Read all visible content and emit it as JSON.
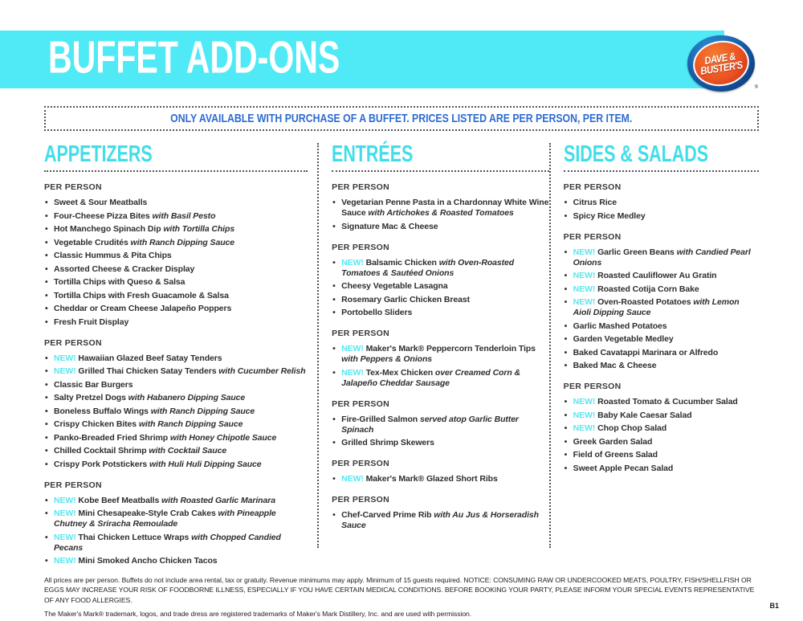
{
  "colors": {
    "banner_cyan": "#4feaf5",
    "heading_cyan": "#41dee9",
    "new_cyan": "#5be5ee",
    "notice_blue": "#2d6bd2",
    "body_text": "#2e2e2e"
  },
  "banner": {
    "title": "BUFFET ADD-ONS"
  },
  "logo": {
    "line1": "DAVE &",
    "line2": "BUSTER'S",
    "registered_mark": "®"
  },
  "notice": {
    "text": "ONLY AVAILABLE WITH PURCHASE OF A BUFFET. PRICES LISTED ARE PER PERSON, PER ITEM."
  },
  "menu": {
    "new_label": "NEW!",
    "columns": [
      {
        "id": "appetizers",
        "title": "APPETIZERS",
        "groups": [
          {
            "label": "PER PERSON",
            "items": [
              {
                "new": false,
                "name": "Sweet & Sour Meatballs",
                "detail": ""
              },
              {
                "new": false,
                "name": "Four-Cheese Pizza Bites",
                "detail": "with Basil Pesto"
              },
              {
                "new": false,
                "name": "Hot Manchego Spinach Dip",
                "detail": "with Tortilla Chips"
              },
              {
                "new": false,
                "name": "Vegetable Crudités",
                "detail": "with Ranch Dipping Sauce"
              },
              {
                "new": false,
                "name": "Classic Hummus & Pita Chips",
                "detail": ""
              },
              {
                "new": false,
                "name": "Assorted Cheese & Cracker Display",
                "detail": ""
              },
              {
                "new": false,
                "name": "Tortilla Chips with Queso & Salsa",
                "detail": ""
              },
              {
                "new": false,
                "name": "Tortilla Chips with Fresh Guacamole & Salsa",
                "detail": ""
              },
              {
                "new": false,
                "name": "Cheddar or Cream Cheese Jalapeño Poppers",
                "detail": ""
              },
              {
                "new": false,
                "name": "Fresh Fruit Display",
                "detail": ""
              }
            ]
          },
          {
            "label": "PER PERSON",
            "items": [
              {
                "new": true,
                "name": "Hawaiian Glazed Beef Satay Tenders",
                "detail": ""
              },
              {
                "new": true,
                "name": "Grilled Thai Chicken Satay Tenders",
                "detail": "with Cucumber Relish"
              },
              {
                "new": false,
                "name": "Classic Bar Burgers",
                "detail": ""
              },
              {
                "new": false,
                "name": "Salty Pretzel Dogs",
                "detail": "with Habanero Dipping Sauce"
              },
              {
                "new": false,
                "name": "Boneless Buffalo Wings",
                "detail": "with Ranch Dipping Sauce"
              },
              {
                "new": false,
                "name": "Crispy Chicken Bites",
                "detail": "with Ranch Dipping Sauce"
              },
              {
                "new": false,
                "name": "Panko-Breaded Fried Shrimp",
                "detail": "with Honey Chipotle Sauce"
              },
              {
                "new": false,
                "name": "Chilled Cocktail Shrimp",
                "detail": "with Cocktail Sauce"
              },
              {
                "new": false,
                "name": "Crispy Pork Potstickers",
                "detail": "with Huli Huli Dipping Sauce"
              }
            ]
          },
          {
            "label": "PER PERSON",
            "items": [
              {
                "new": true,
                "name": "Kobe Beef Meatballs",
                "detail": "with Roasted Garlic Marinara"
              },
              {
                "new": true,
                "name": "Mini Chesapeake-Style Crab Cakes",
                "detail": "with Pineapple Chutney & Sriracha Remoulade"
              },
              {
                "new": true,
                "name": "Thai Chicken Lettuce Wraps",
                "detail": "with Chopped Candied Pecans"
              },
              {
                "new": true,
                "name": "Mini Smoked Ancho Chicken Tacos",
                "detail": ""
              }
            ]
          }
        ]
      },
      {
        "id": "entrees",
        "title": "ENTRÉES",
        "groups": [
          {
            "label": "PER PERSON",
            "items": [
              {
                "new": false,
                "name": "Vegetarian Penne Pasta in a Chardonnay White Wine Sauce",
                "detail": "with Artichokes & Roasted Tomatoes"
              },
              {
                "new": false,
                "name": "Signature Mac & Cheese",
                "detail": ""
              }
            ]
          },
          {
            "label": "PER PERSON",
            "items": [
              {
                "new": true,
                "name": "Balsamic Chicken",
                "detail": "with Oven-Roasted Tomatoes & Sautéed Onions"
              },
              {
                "new": false,
                "name": "Cheesy Vegetable Lasagna",
                "detail": ""
              },
              {
                "new": false,
                "name": "Rosemary Garlic Chicken Breast",
                "detail": ""
              },
              {
                "new": false,
                "name": "Portobello Sliders",
                "detail": ""
              }
            ]
          },
          {
            "label": "PER PERSON",
            "items": [
              {
                "new": true,
                "name": "Maker's Mark® Peppercorn Tenderloin Tips",
                "detail": "with Peppers & Onions"
              },
              {
                "new": true,
                "name": "Tex-Mex Chicken",
                "detail": "over Creamed Corn & Jalapeño Cheddar Sausage"
              }
            ]
          },
          {
            "label": "PER PERSON",
            "items": [
              {
                "new": false,
                "name": "Fire-Grilled Salmon",
                "detail": "served atop Garlic Butter Spinach"
              },
              {
                "new": false,
                "name": "Grilled Shrimp Skewers",
                "detail": ""
              }
            ]
          },
          {
            "label": "PER PERSON",
            "items": [
              {
                "new": true,
                "name": "Maker's Mark® Glazed Short Ribs",
                "detail": ""
              }
            ]
          },
          {
            "label": "PER PERSON",
            "items": [
              {
                "new": false,
                "name": "Chef-Carved Prime Rib",
                "detail": "with Au Jus & Horseradish Sauce"
              }
            ]
          }
        ]
      },
      {
        "id": "sides",
        "title": "SIDES & SALADS",
        "groups": [
          {
            "label": "PER PERSON",
            "items": [
              {
                "new": false,
                "name": "Citrus Rice",
                "detail": ""
              },
              {
                "new": false,
                "name": "Spicy Rice Medley",
                "detail": ""
              }
            ]
          },
          {
            "label": "PER PERSON",
            "items": [
              {
                "new": true,
                "name": "Garlic Green Beans",
                "detail": "with Candied Pearl Onions"
              },
              {
                "new": true,
                "name": "Roasted Cauliflower Au Gratin",
                "detail": ""
              },
              {
                "new": true,
                "name": "Roasted Cotija Corn Bake",
                "detail": ""
              },
              {
                "new": true,
                "name": "Oven-Roasted Potatoes",
                "detail": "with Lemon Aioli Dipping Sauce"
              },
              {
                "new": false,
                "name": "Garlic Mashed Potatoes",
                "detail": ""
              },
              {
                "new": false,
                "name": "Garden Vegetable Medley",
                "detail": ""
              },
              {
                "new": false,
                "name": "Baked Cavatappi Marinara or Alfredo",
                "detail": ""
              },
              {
                "new": false,
                "name": "Baked Mac & Cheese",
                "detail": ""
              }
            ]
          },
          {
            "label": "PER PERSON",
            "items": [
              {
                "new": true,
                "name": "Roasted Tomato & Cucumber Salad",
                "detail": ""
              },
              {
                "new": true,
                "name": "Baby Kale Caesar Salad",
                "detail": ""
              },
              {
                "new": true,
                "name": "Chop Chop Salad",
                "detail": ""
              },
              {
                "new": false,
                "name": "Greek Garden Salad",
                "detail": ""
              },
              {
                "new": false,
                "name": "Field of Greens Salad",
                "detail": ""
              },
              {
                "new": false,
                "name": "Sweet Apple Pecan Salad",
                "detail": ""
              }
            ]
          }
        ]
      }
    ]
  },
  "footer": {
    "disclaimer": "All prices are per person. Buffets do not include area rental, tax or gratuity. Revenue minimums may apply. Minimum of 15 guests required. NOTICE: CONSUMING RAW OR UNDERCOOKED MEATS, POULTRY, FISH/SHELLFISH OR EGGS MAY INCREASE YOUR RISK OF FOODBORNE ILLNESS, ESPECIALLY IF YOU HAVE CERTAIN MEDICAL CONDITIONS. BEFORE BOOKING YOUR PARTY, PLEASE INFORM YOUR SPECIAL EVENTS REPRESENTATIVE OF ANY FOOD ALLERGIES.",
    "trademark": "The Maker's Mark® trademark, logos, and trade dress are registered trademarks of Maker's Mark Distillery, Inc. and are used with permission.",
    "page_number": "B1"
  }
}
